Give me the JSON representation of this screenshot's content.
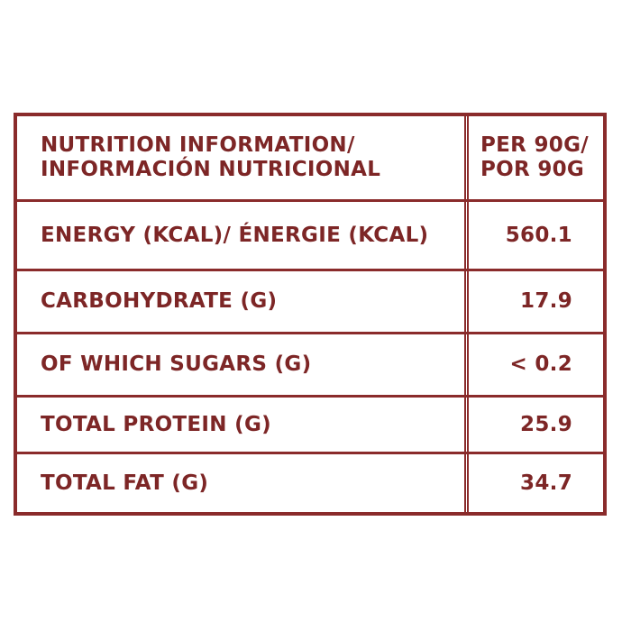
{
  "table": {
    "header": {
      "label": [
        "NUTRITION INFORMATION/",
        "INFORMACIÓN NUTRICIONAL"
      ],
      "value": [
        "PER 90G/",
        "POR 90G"
      ]
    },
    "rows": [
      [
        "ENERGY (KCAL)/ ÉNERGIE (KCAL)",
        "560.1"
      ],
      [
        "CARBOHYDRATE (G)",
        "17.9"
      ],
      [
        "OF WHICH SUGARS (G)",
        "< 0.2"
      ],
      [
        "TOTAL PROTEIN (G)",
        "25.9"
      ],
      [
        "TOTAL FAT (G)",
        "34.7"
      ]
    ]
  }
}
